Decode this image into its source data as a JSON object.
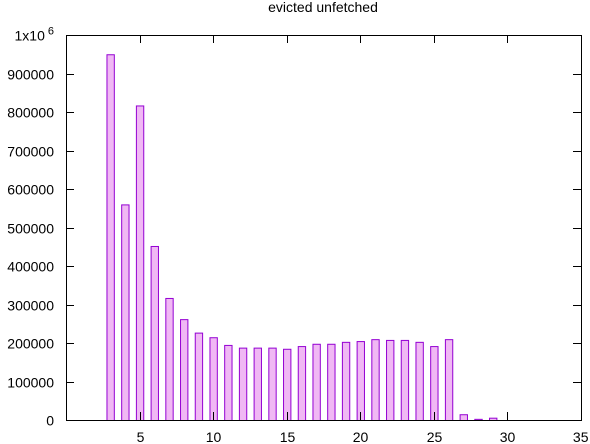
{
  "chart_data": {
    "type": "bar",
    "title": "evicted unfetched",
    "xlabel": "",
    "ylabel": "",
    "xlim": [
      0,
      35
    ],
    "ylim": [
      0,
      1000000
    ],
    "grid": false,
    "legend": "none",
    "x_ticks": [
      {
        "value": 5,
        "label": "5"
      },
      {
        "value": 10,
        "label": "10"
      },
      {
        "value": 15,
        "label": "15"
      },
      {
        "value": 20,
        "label": "20"
      },
      {
        "value": 25,
        "label": "25"
      },
      {
        "value": 30,
        "label": "30"
      },
      {
        "value": 35,
        "label": "35"
      }
    ],
    "y_ticks": [
      {
        "value": 0,
        "label": "0"
      },
      {
        "value": 100000,
        "label": "100000"
      },
      {
        "value": 200000,
        "label": "200000"
      },
      {
        "value": 300000,
        "label": "300000"
      },
      {
        "value": 400000,
        "label": "400000"
      },
      {
        "value": 500000,
        "label": "500000"
      },
      {
        "value": 600000,
        "label": "600000"
      },
      {
        "value": 700000,
        "label": "700000"
      },
      {
        "value": 800000,
        "label": "800000"
      },
      {
        "value": 900000,
        "label": "900000"
      }
    ],
    "y_top_label": {
      "base": "1x10",
      "exponent": "6",
      "value": 1000000
    },
    "bar_width": 0.5,
    "colors": {
      "fill": "#f0b8f4",
      "stroke": "#9400d3"
    },
    "series": [
      {
        "x": [
          3,
          4,
          5,
          6,
          7,
          8,
          9,
          10,
          11,
          12,
          13,
          14,
          15,
          16,
          17,
          18,
          19,
          20,
          21,
          22,
          23,
          24,
          25,
          26,
          27,
          28,
          29
        ],
        "values": [
          950000,
          560000,
          817000,
          452000,
          317000,
          262000,
          227000,
          215000,
          195000,
          188000,
          188000,
          188000,
          185000,
          192000,
          198000,
          198000,
          203000,
          205000,
          210000,
          208000,
          208000,
          203000,
          192000,
          210000,
          15000,
          3000,
          6000
        ]
      }
    ]
  }
}
